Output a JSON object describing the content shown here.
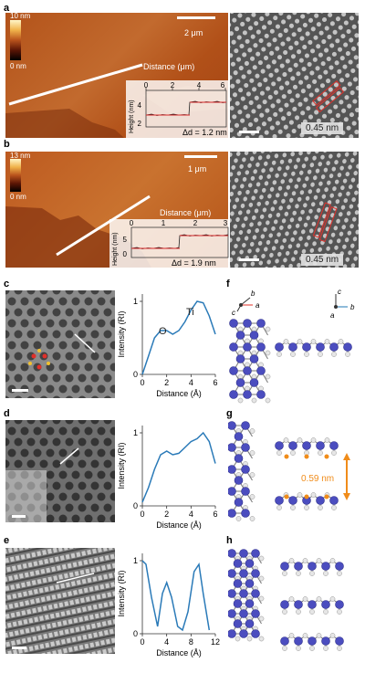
{
  "panels": {
    "a": {
      "label": "a",
      "colorbar_top": "10 nm",
      "colorbar_bottom": "0 nm",
      "scalebar": "2 μm",
      "lattice": "0.45 nm",
      "inset_xlabel": "Distance (μm)",
      "inset_ylabel": "Height (nm)",
      "inset_xticks": [
        "0",
        "2",
        "4",
        "6"
      ],
      "inset_yticks": [
        "2",
        "4"
      ],
      "step": "Δd = 1.2 nm"
    },
    "b": {
      "label": "b",
      "colorbar_top": "13 nm",
      "colorbar_bottom": "0 nm",
      "scalebar": "1 μm",
      "lattice": "0.45 nm",
      "inset_xlabel": "Distance (μm)",
      "inset_ylabel": "Height (nm)",
      "inset_xticks": [
        "0",
        "1",
        "2",
        "3"
      ],
      "inset_yticks": [
        "0",
        "5"
      ],
      "step": "Δd = 1.9 nm"
    },
    "c": {
      "label": "c"
    },
    "d": {
      "label": "d"
    },
    "e": {
      "label": "e"
    },
    "f": {
      "label": "f",
      "axes_left": {
        "b": "b",
        "a": "a",
        "c": "c"
      },
      "axes_right": {
        "c": "c",
        "b": "b",
        "a": "a"
      }
    },
    "g": {
      "label": "g",
      "spacing": "0.59 nm"
    },
    "h": {
      "label": "h"
    }
  },
  "profile_labels": {
    "O": "O",
    "Ti": "Ti"
  },
  "chart_data": [
    {
      "type": "line",
      "panel": "c",
      "xlabel": "Distance (Å)",
      "ylabel": "Intensity (RI)",
      "xlim": [
        0,
        6
      ],
      "ylim": [
        0,
        1.1
      ],
      "xticks": [
        "0",
        "2",
        "4",
        "6"
      ],
      "yticks": [
        "0",
        "1"
      ],
      "x": [
        0,
        0.5,
        1.0,
        1.5,
        2.0,
        2.5,
        3.0,
        3.5,
        4.0,
        4.5,
        5.0,
        5.5,
        6.0
      ],
      "y": [
        0.0,
        0.25,
        0.5,
        0.6,
        0.6,
        0.55,
        0.6,
        0.72,
        0.88,
        1.0,
        0.98,
        0.8,
        0.55
      ]
    },
    {
      "type": "line",
      "panel": "d",
      "xlabel": "Distance (Å)",
      "ylabel": "Intensity (RI)",
      "xlim": [
        0,
        6
      ],
      "ylim": [
        0,
        1.1
      ],
      "xticks": [
        "0",
        "2",
        "4",
        "6"
      ],
      "yticks": [
        "0",
        "1"
      ],
      "x": [
        0,
        0.5,
        1.0,
        1.5,
        2.0,
        2.5,
        3.0,
        3.5,
        4.0,
        4.5,
        5.0,
        5.5,
        6.0
      ],
      "y": [
        0.05,
        0.25,
        0.5,
        0.7,
        0.75,
        0.7,
        0.72,
        0.8,
        0.88,
        0.92,
        1.0,
        0.88,
        0.58
      ]
    },
    {
      "type": "line",
      "panel": "e",
      "xlabel": "Distance (Å)",
      "ylabel": "Intensity (RI)",
      "xlim": [
        0,
        12
      ],
      "ylim": [
        0,
        1.1
      ],
      "xticks": [
        "0",
        "4",
        "8",
        "12"
      ],
      "yticks": [
        "0",
        "1"
      ],
      "x": [
        0,
        0.6,
        1.5,
        2.5,
        3.3,
        4.0,
        4.8,
        5.8,
        6.6,
        7.5,
        8.5,
        9.3,
        10.0,
        11.0
      ],
      "y": [
        1.0,
        0.95,
        0.5,
        0.1,
        0.55,
        0.7,
        0.5,
        0.1,
        0.05,
        0.3,
        0.85,
        0.95,
        0.55,
        0.05
      ]
    }
  ]
}
